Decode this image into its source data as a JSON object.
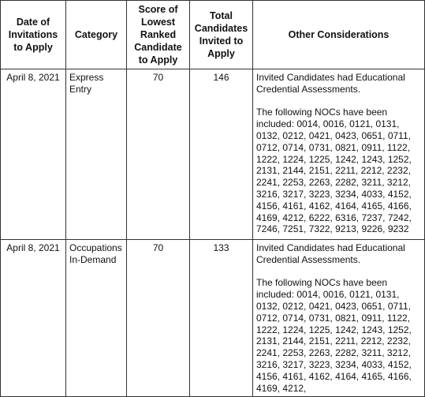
{
  "table": {
    "header": [
      "Date of Invitations to Apply",
      "Category",
      "Score of Lowest Ranked Candidate to Apply",
      "Total Candidates Invited to Apply",
      "Other Considerations"
    ],
    "rows": [
      {
        "date": "April 8, 2021",
        "category": "Express Entry",
        "score": 70,
        "total": 146,
        "notes": [
          "Invited Candidates had Educational Credential Assessments.",
          "The following NOCs have been included: 0014, 0016, 0121, 0131, 0132, 0212, 0421, 0423, 0651, 0711, 0712, 0714, 0731, 0821, 0911, 1122, 1222, 1224, 1225, 1242, 1243, 1252, 2131, 2144, 2151, 2211, 2212, 2232, 2241, 2253, 2263, 2282, 3211, 3212, 3216, 3217, 3223, 3234, 4033, 4152, 4156, 4161, 4162, 4164, 4165, 4166, 4169, 4212, 6222, 6316, 7237, 7242, 7246, 7251, 7322, 9213, 9226, 9232"
        ]
      },
      {
        "date": "April 8, 2021",
        "category": "Occupations In-Demand",
        "score": 70,
        "total": 133,
        "notes": [
          "Invited Candidates had Educational Credential Assessments.",
          "The following NOCs have been included: 0014, 0016, 0121, 0131, 0132, 0212, 0421, 0423, 0651, 0711, 0712, 0714, 0731, 0821, 0911, 1122, 1222, 1224, 1225, 1242, 1243, 1252, 2131, 2144, 2151, 2211, 2212, 2232, 2241, 2253, 2263, 2282, 3211, 3212, 3216, 3217, 3223, 3234, 4033, 4152, 4156, 4161, 4162, 4164, 4165, 4166, 4169, 4212,"
        ]
      }
    ]
  }
}
